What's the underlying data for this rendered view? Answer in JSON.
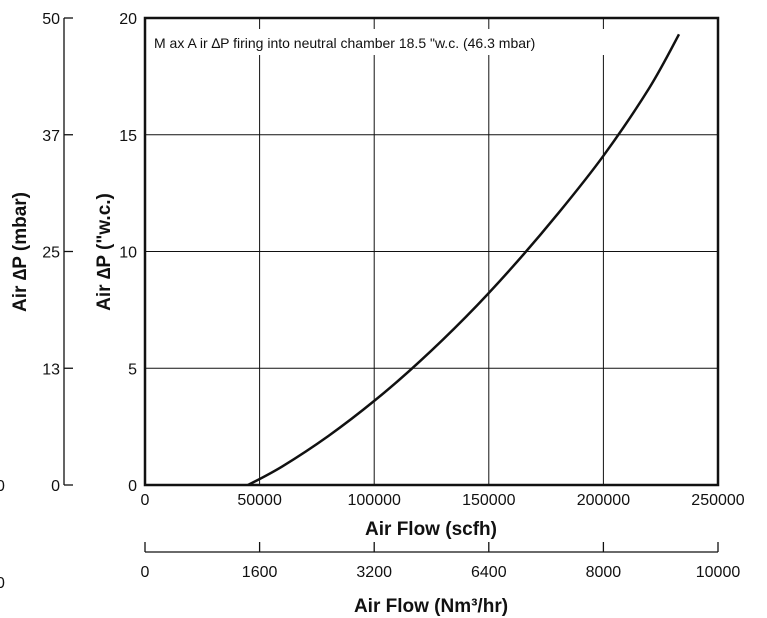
{
  "chart_data": {
    "type": "line",
    "title": "",
    "xlabel": "Air Flow (scfh)",
    "x2label": "Air Flow (Nm³/hr)",
    "ylabel": "Air ∆P (\"w.c.)",
    "y2label": "Air ∆P (mbar)",
    "xlim": [
      0,
      250000
    ],
    "ylim": [
      0,
      20
    ],
    "grid": true,
    "x_ticks": [
      "0",
      "50000",
      "100000",
      "150000",
      "200000",
      "250000"
    ],
    "x2_ticks": [
      "0",
      "1600",
      "3200",
      "6400",
      "8000",
      "10000"
    ],
    "y_ticks": [
      "0",
      "5",
      "10",
      "15",
      "20"
    ],
    "y2_ticks": [
      "0",
      "13",
      "25",
      "37",
      "50"
    ],
    "annotation": "M ax A ir ∆P firing into neutral chamber 18.5 \"w.c. (46.3 mbar)",
    "stray_marks": [
      "0",
      "0"
    ],
    "series": [
      {
        "x": [
          45000,
          60000,
          80000,
          100000,
          120000,
          140000,
          160000,
          180000,
          200000,
          220000,
          233000
        ],
        "y": [
          0,
          0.8,
          2.1,
          3.6,
          5.3,
          7.2,
          9.3,
          11.6,
          14.1,
          17.0,
          19.3
        ]
      }
    ]
  }
}
